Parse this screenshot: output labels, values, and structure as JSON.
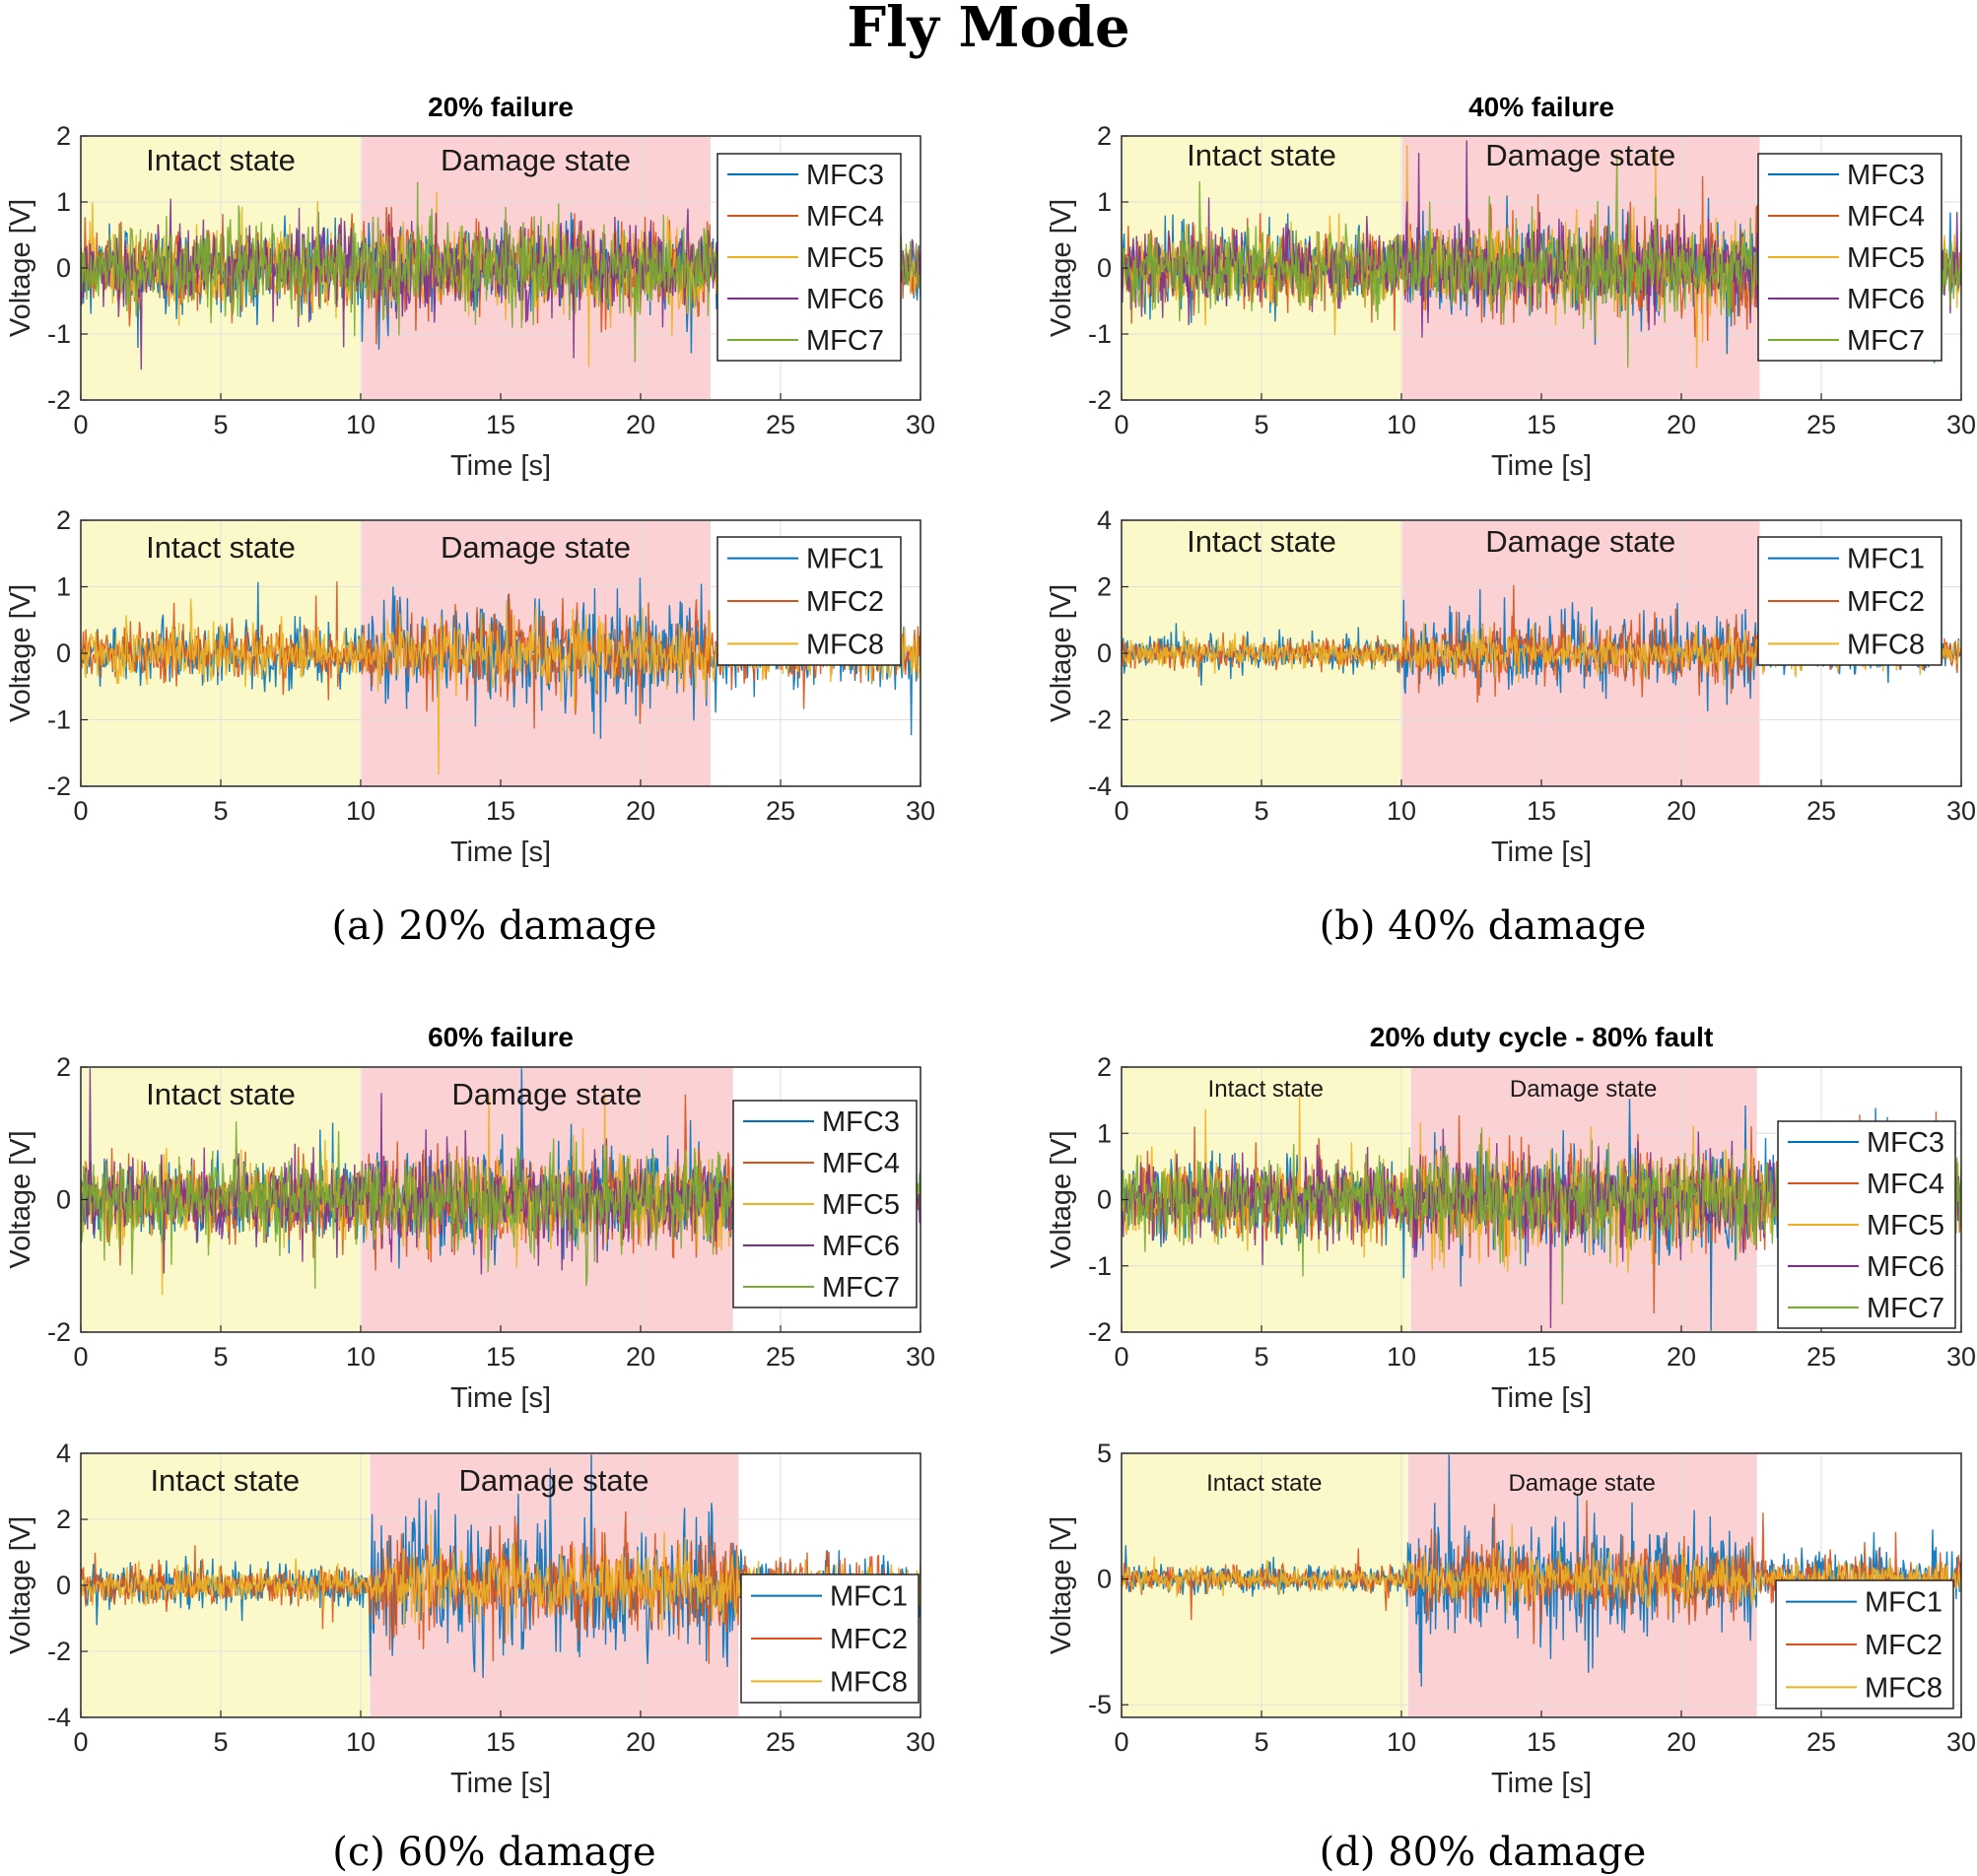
{
  "figure_title": "Fly Mode",
  "captions": [
    "(a)  20% damage",
    "(b)  40% damage",
    "(c)  60% damage",
    "(d)  80% damage"
  ],
  "colors": {
    "intact_shade": "#fbf8c9",
    "damage_shade": "#fbd1d4",
    "grid": "#dfdfdf",
    "axes": "#262626",
    "MFC1": "#0072BD",
    "MFC2": "#D95319",
    "MFC3": "#0072BD",
    "MFC4": "#D95319",
    "MFC5": "#EDB120",
    "MFC6": "#7E2F8E",
    "MFC7": "#77AC30",
    "MFC8": "#EDB120"
  },
  "chart_data": [
    {
      "id": "a-top",
      "type": "line",
      "title": "20% failure",
      "xlabel": "Time [s]",
      "ylabel": "Voltage [V]",
      "xlim": [
        0,
        30
      ],
      "ylim": [
        -2,
        2
      ],
      "xticks": [
        0,
        5,
        10,
        15,
        20,
        25,
        30
      ],
      "yticks": [
        -2,
        -1,
        0,
        1,
        2
      ],
      "regions": [
        {
          "name": "intact",
          "label": "Intact state",
          "x0": 0,
          "x1": 10
        },
        {
          "name": "damage",
          "label": "Damage state",
          "x0": 10,
          "x1": 22.5
        }
      ],
      "series": [
        {
          "name": "MFC3",
          "amplitude": {
            "intact": 0.5,
            "damage": 0.6,
            "after": 0.4
          }
        },
        {
          "name": "MFC4",
          "amplitude": {
            "intact": 0.5,
            "damage": 0.6,
            "after": 0.4
          }
        },
        {
          "name": "MFC5",
          "amplitude": {
            "intact": 0.5,
            "damage": 0.6,
            "after": 0.4
          }
        },
        {
          "name": "MFC6",
          "amplitude": {
            "intact": 0.55,
            "damage": 0.6,
            "after": 0.4
          }
        },
        {
          "name": "MFC7",
          "amplitude": {
            "intact": 0.55,
            "damage": 0.6,
            "after": 0.4
          }
        }
      ],
      "legend": [
        "MFC3",
        "MFC4",
        "MFC5",
        "MFC6",
        "MFC7"
      ]
    },
    {
      "id": "a-bottom",
      "type": "line",
      "title": "",
      "xlabel": "Time [s]",
      "ylabel": "Voltage [V]",
      "xlim": [
        0,
        30
      ],
      "ylim": [
        -2,
        2
      ],
      "xticks": [
        0,
        5,
        10,
        15,
        20,
        25,
        30
      ],
      "yticks": [
        -2,
        -1,
        0,
        1,
        2
      ],
      "regions": [
        {
          "name": "intact",
          "label": "Intact state",
          "x0": 0,
          "x1": 10
        },
        {
          "name": "damage",
          "label": "Damage state",
          "x0": 10,
          "x1": 22.5
        }
      ],
      "series": [
        {
          "name": "MFC1",
          "amplitude": {
            "intact": 0.4,
            "damage": 0.75,
            "after": 0.45
          }
        },
        {
          "name": "MFC2",
          "amplitude": {
            "intact": 0.35,
            "damage": 0.55,
            "after": 0.4
          }
        },
        {
          "name": "MFC8",
          "amplitude": {
            "intact": 0.35,
            "damage": 0.45,
            "after": 0.35
          }
        }
      ],
      "legend": [
        "MFC1",
        "MFC2",
        "MFC8"
      ]
    },
    {
      "id": "b-top",
      "type": "line",
      "title": "40% failure",
      "xlabel": "Time [s]",
      "ylabel": "Voltage [V]",
      "xlim": [
        0,
        30
      ],
      "ylim": [
        -2,
        2
      ],
      "xticks": [
        0,
        5,
        10,
        15,
        20,
        25,
        30
      ],
      "yticks": [
        -2,
        -1,
        0,
        1,
        2
      ],
      "regions": [
        {
          "name": "intact",
          "label": "Intact state",
          "x0": 0,
          "x1": 10
        },
        {
          "name": "damage",
          "label": "Damage state",
          "x0": 10,
          "x1": 22.8
        }
      ],
      "series": [
        {
          "name": "MFC3",
          "amplitude": {
            "intact": 0.5,
            "damage": 0.65,
            "after": 0.5
          }
        },
        {
          "name": "MFC4",
          "amplitude": {
            "intact": 0.5,
            "damage": 0.65,
            "after": 0.5
          }
        },
        {
          "name": "MFC5",
          "amplitude": {
            "intact": 0.5,
            "damage": 0.6,
            "after": 0.5
          }
        },
        {
          "name": "MFC6",
          "amplitude": {
            "intact": 0.5,
            "damage": 0.6,
            "after": 0.5
          }
        },
        {
          "name": "MFC7",
          "amplitude": {
            "intact": 0.55,
            "damage": 0.6,
            "after": 0.55
          }
        }
      ],
      "legend": [
        "MFC3",
        "MFC4",
        "MFC5",
        "MFC6",
        "MFC7"
      ]
    },
    {
      "id": "b-bottom",
      "type": "line",
      "title": "",
      "xlabel": "Time [s]",
      "ylabel": "Voltage [V]",
      "xlim": [
        0,
        30
      ],
      "ylim": [
        -4,
        4
      ],
      "xticks": [
        0,
        5,
        10,
        15,
        20,
        25,
        30
      ],
      "yticks": [
        -4,
        -2,
        0,
        2,
        4
      ],
      "regions": [
        {
          "name": "intact",
          "label": "Intact state",
          "x0": 0,
          "x1": 10
        },
        {
          "name": "damage",
          "label": "Damage state",
          "x0": 10,
          "x1": 22.8
        }
      ],
      "series": [
        {
          "name": "MFC1",
          "amplitude": {
            "intact": 0.45,
            "damage": 1.0,
            "after": 0.5
          }
        },
        {
          "name": "MFC2",
          "amplitude": {
            "intact": 0.4,
            "damage": 0.8,
            "after": 0.45
          }
        },
        {
          "name": "MFC8",
          "amplitude": {
            "intact": 0.35,
            "damage": 0.55,
            "after": 0.4
          }
        }
      ],
      "legend": [
        "MFC1",
        "MFC2",
        "MFC8"
      ]
    },
    {
      "id": "c-top",
      "type": "line",
      "title": "60% failure",
      "xlabel": "Time [s]",
      "ylabel": "Voltage [V]",
      "xlim": [
        0,
        30
      ],
      "ylim": [
        -2,
        2
      ],
      "xticks": [
        0,
        5,
        10,
        15,
        20,
        25,
        30
      ],
      "yticks": [
        -2,
        0,
        2
      ],
      "regions": [
        {
          "name": "intact",
          "label": "Intact state",
          "x0": 0,
          "x1": 10
        },
        {
          "name": "damage",
          "label": "Damage state",
          "x0": 10,
          "x1": 23.3
        }
      ],
      "series": [
        {
          "name": "MFC3",
          "amplitude": {
            "intact": 0.5,
            "damage": 0.65,
            "after": 0.45
          }
        },
        {
          "name": "MFC4",
          "amplitude": {
            "intact": 0.5,
            "damage": 0.65,
            "after": 0.45
          }
        },
        {
          "name": "MFC5",
          "amplitude": {
            "intact": 0.5,
            "damage": 0.6,
            "after": 0.45
          }
        },
        {
          "name": "MFC6",
          "amplitude": {
            "intact": 0.5,
            "damage": 0.6,
            "after": 0.45
          }
        },
        {
          "name": "MFC7",
          "amplitude": {
            "intact": 0.55,
            "damage": 0.6,
            "after": 0.5
          }
        }
      ],
      "legend": [
        "MFC3",
        "MFC4",
        "MFC5",
        "MFC6",
        "MFC7"
      ]
    },
    {
      "id": "c-bottom",
      "type": "line",
      "title": "",
      "xlabel": "Time [s]",
      "ylabel": "Voltage [V]",
      "xlim": [
        0,
        30
      ],
      "ylim": [
        -4,
        4
      ],
      "xticks": [
        0,
        5,
        10,
        15,
        20,
        25,
        30
      ],
      "yticks": [
        -4,
        -2,
        0,
        2,
        4
      ],
      "regions": [
        {
          "name": "intact",
          "label": "Intact state",
          "x0": 0,
          "x1": 10.3
        },
        {
          "name": "damage",
          "label": "Damage state",
          "x0": 10.3,
          "x1": 23.5
        }
      ],
      "series": [
        {
          "name": "MFC1",
          "amplitude": {
            "intact": 0.6,
            "damage": 1.8,
            "after": 0.8
          }
        },
        {
          "name": "MFC2",
          "amplitude": {
            "intact": 0.5,
            "damage": 1.3,
            "after": 0.7
          }
        },
        {
          "name": "MFC8",
          "amplitude": {
            "intact": 0.45,
            "damage": 0.9,
            "after": 0.6
          }
        }
      ],
      "legend": [
        "MFC1",
        "MFC2",
        "MFC8"
      ]
    },
    {
      "id": "d-top",
      "type": "line",
      "title": "20% duty cycle - 80% fault",
      "xlabel": "Time [s]",
      "ylabel": "Voltage [V]",
      "xlim": [
        0,
        30
      ],
      "ylim": [
        -2,
        2
      ],
      "xticks": [
        0,
        5,
        10,
        15,
        20,
        25,
        30
      ],
      "yticks": [
        -2,
        -1,
        0,
        1,
        2
      ],
      "regions": [
        {
          "name": "intact",
          "label": "Intact state",
          "x0": 0,
          "x1": 10.3
        },
        {
          "name": "damage",
          "label": "Damage state",
          "x0": 10.3,
          "x1": 22.7
        }
      ],
      "series": [
        {
          "name": "MFC3",
          "amplitude": {
            "intact": 0.5,
            "damage": 0.7,
            "after": 0.55
          }
        },
        {
          "name": "MFC4",
          "amplitude": {
            "intact": 0.5,
            "damage": 0.7,
            "after": 0.55
          }
        },
        {
          "name": "MFC5",
          "amplitude": {
            "intact": 0.5,
            "damage": 0.65,
            "after": 0.5
          }
        },
        {
          "name": "MFC6",
          "amplitude": {
            "intact": 0.5,
            "damage": 0.65,
            "after": 0.5
          }
        },
        {
          "name": "MFC7",
          "amplitude": {
            "intact": 0.55,
            "damage": 0.6,
            "after": 0.55
          }
        }
      ],
      "legend": [
        "MFC3",
        "MFC4",
        "MFC5",
        "MFC6",
        "MFC7"
      ]
    },
    {
      "id": "d-bottom",
      "type": "line",
      "title": "",
      "xlabel": "Time [s]",
      "ylabel": "Voltage [V]",
      "xlim": [
        0,
        30
      ],
      "ylim": [
        -5.5,
        5
      ],
      "xticks": [
        0,
        5,
        10,
        15,
        20,
        25,
        30
      ],
      "yticks": [
        -5,
        0,
        5
      ],
      "regions": [
        {
          "name": "intact",
          "label": "Intact state",
          "x0": 0,
          "x1": 10.2
        },
        {
          "name": "damage",
          "label": "Damage state",
          "x0": 10.2,
          "x1": 22.7
        }
      ],
      "series": [
        {
          "name": "MFC1",
          "amplitude": {
            "intact": 0.5,
            "damage": 2.0,
            "after": 1.0
          }
        },
        {
          "name": "MFC2",
          "amplitude": {
            "intact": 0.45,
            "damage": 1.4,
            "after": 0.8
          }
        },
        {
          "name": "MFC8",
          "amplitude": {
            "intact": 0.4,
            "damage": 0.9,
            "after": 0.6
          }
        }
      ],
      "legend": [
        "MFC1",
        "MFC2",
        "MFC8"
      ]
    }
  ]
}
